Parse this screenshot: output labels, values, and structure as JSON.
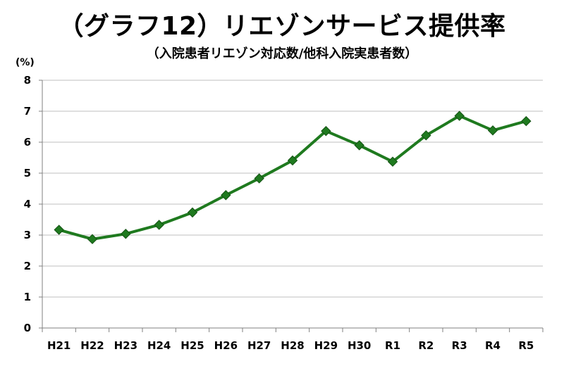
{
  "title": "（グラフ12）リエゾンサービス提供率",
  "subtitle": "（入院患者リエゾン対応数/他科入院実患者数）",
  "chart_data": {
    "type": "line",
    "title": "（グラフ12）リエゾンサービス提供率",
    "subtitle": "（入院患者リエゾン対応数/他科入院実患者数）",
    "y_unit_label": "(%)",
    "categories": [
      "H21",
      "H22",
      "H23",
      "H24",
      "H25",
      "H26",
      "H27",
      "H28",
      "H29",
      "H30",
      "R1",
      "R2",
      "R3",
      "R4",
      "R5"
    ],
    "series": [
      {
        "values": [
          3.17,
          2.87,
          3.04,
          3.33,
          3.73,
          4.29,
          4.83,
          5.41,
          6.36,
          5.9,
          5.37,
          6.22,
          6.85,
          6.38,
          6.68
        ]
      }
    ],
    "y_ticks": [
      "0",
      "1",
      "2",
      "3",
      "4",
      "5",
      "6",
      "7",
      "8"
    ],
    "ylim": [
      0,
      8
    ],
    "grid": true,
    "legend": "none",
    "colors": {
      "line": "#1f7a1f",
      "marker": "#1f7a1f",
      "grid": "#bfbfbf",
      "axis": "#808080"
    }
  }
}
